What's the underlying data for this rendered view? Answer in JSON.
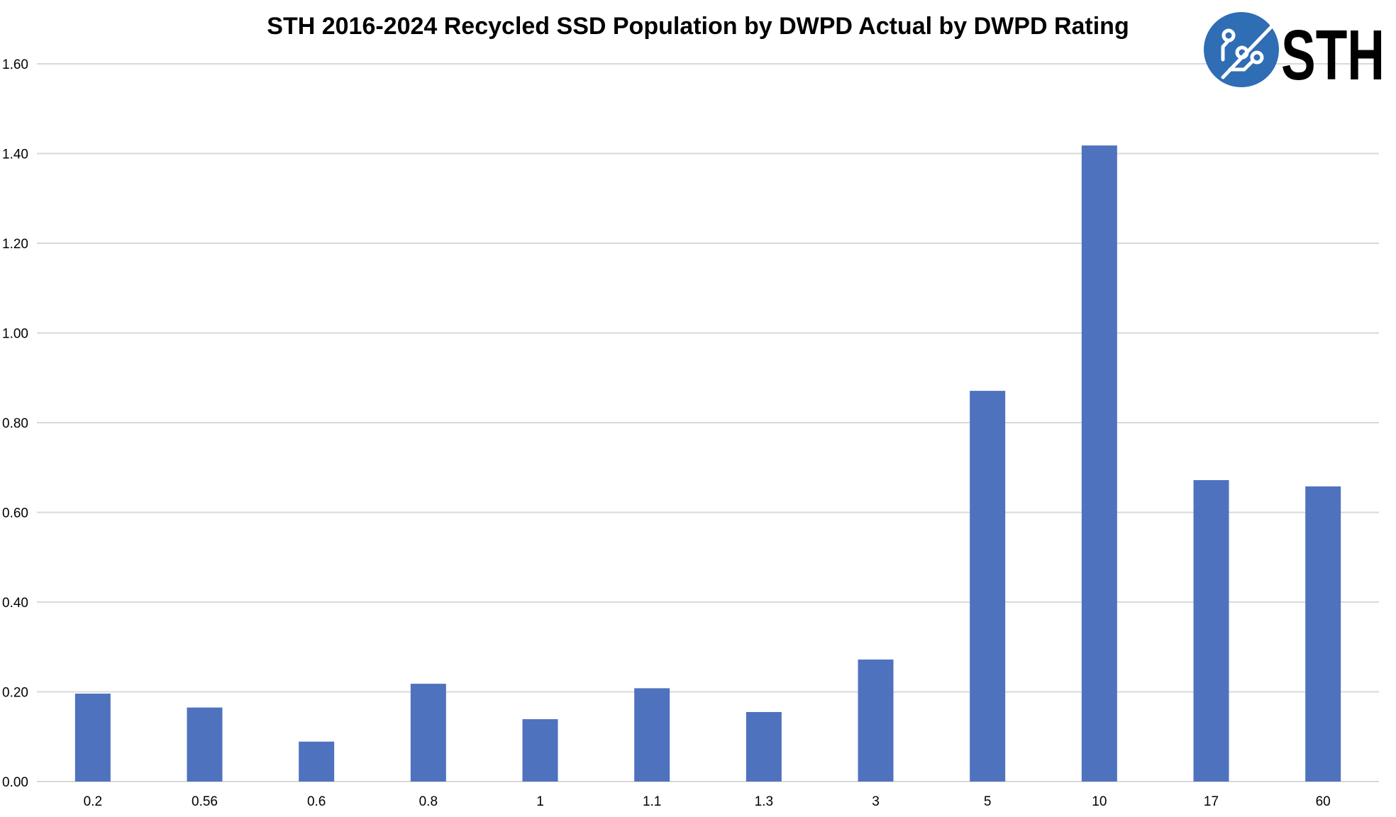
{
  "chart_data": {
    "type": "bar",
    "title": "STH 2016-2024 Recycled SSD Population by DWPD Actual by DWPD Rating",
    "xlabel": "",
    "ylabel": "",
    "categories": [
      "0.2",
      "0.56",
      "0.6",
      "0.8",
      "1",
      "1.1",
      "1.3",
      "3",
      "5",
      "10",
      "17",
      "60"
    ],
    "values": [
      0.196,
      0.165,
      0.089,
      0.218,
      0.139,
      0.208,
      0.155,
      0.272,
      0.871,
      1.418,
      0.672,
      0.658
    ],
    "ylim": [
      0,
      1.6
    ],
    "yticks": [
      "0.00",
      "0.20",
      "0.40",
      "0.60",
      "0.80",
      "1.00",
      "1.20",
      "1.40",
      "1.60"
    ],
    "grid": true,
    "legend": "none",
    "bar_color": "#4f72be",
    "grid_color": "#d9d9d9"
  },
  "logo": {
    "text": "STH",
    "color": "#2f6db5"
  }
}
